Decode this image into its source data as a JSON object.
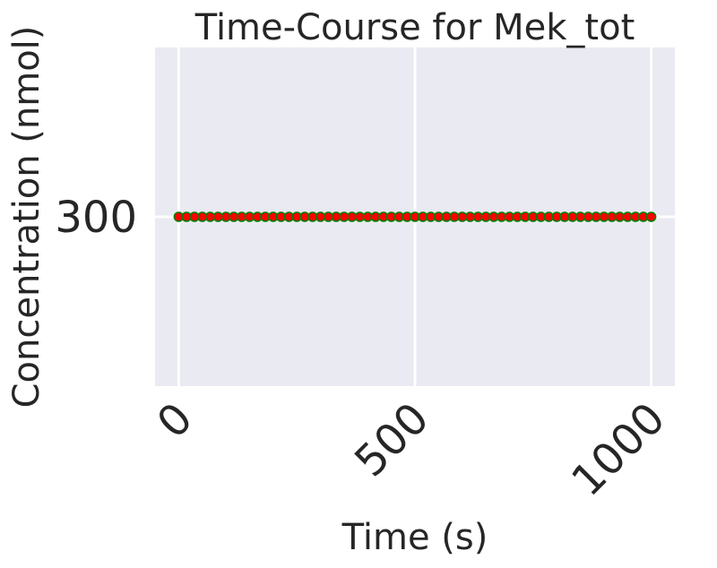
{
  "chart_data": {
    "type": "line",
    "title": "Time-Course for Mek_tot",
    "xlabel": "Time (s)",
    "ylabel": "Concentration (nmol)",
    "x_ticks": [
      "0",
      "500",
      "1000"
    ],
    "y_ticks": [
      "300"
    ],
    "xlim": [
      -50,
      1050
    ],
    "ylim": [
      299.64,
      300.36
    ],
    "grid": true,
    "legend": "none",
    "series": [
      {
        "line_color": "#008000",
        "marker_color": "#ff0000",
        "x": [
          0,
          16.67,
          33.33,
          50,
          66.67,
          83.33,
          100,
          116.67,
          133.33,
          150,
          166.67,
          183.33,
          200,
          216.67,
          233.33,
          250,
          266.67,
          283.33,
          300,
          316.67,
          333.33,
          350,
          366.67,
          383.33,
          400,
          416.67,
          433.33,
          450,
          466.67,
          483.33,
          500,
          516.67,
          533.33,
          550,
          566.67,
          583.33,
          600,
          616.67,
          633.33,
          650,
          666.67,
          683.33,
          700,
          716.67,
          733.33,
          750,
          766.67,
          783.33,
          800,
          816.67,
          833.33,
          850,
          866.67,
          883.33,
          900,
          916.67,
          933.33,
          950,
          966.67,
          983.33,
          1000
        ],
        "y": [
          300,
          300,
          300,
          300,
          300,
          300,
          300,
          300,
          300,
          300,
          300,
          300,
          300,
          300,
          300,
          300,
          300,
          300,
          300,
          300,
          300,
          300,
          300,
          300,
          300,
          300,
          300,
          300,
          300,
          300,
          300,
          300,
          300,
          300,
          300,
          300,
          300,
          300,
          300,
          300,
          300,
          300,
          300,
          300,
          300,
          300,
          300,
          300,
          300,
          300,
          300,
          300,
          300,
          300,
          300,
          300,
          300,
          300,
          300,
          300,
          300
        ]
      }
    ]
  },
  "colors": {
    "plot_background": "#eaeaf2",
    "gridline": "#ffffff",
    "text": "#262626"
  }
}
